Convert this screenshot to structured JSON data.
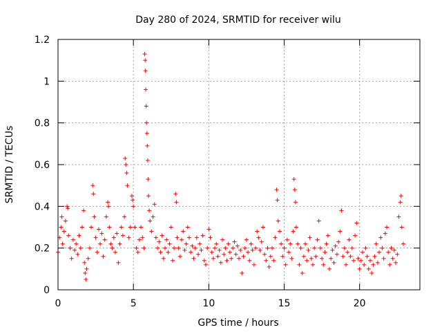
{
  "chart_data": {
    "type": "scatter",
    "title": "Day 280 of 2024, SRMTID for receiver wilu",
    "xlabel": "GPS time / hours",
    "ylabel": "SRMTID / TECUs",
    "xlim": [
      0,
      24
    ],
    "ylim": [
      0,
      1.2
    ],
    "xticks": [
      0,
      5,
      10,
      15,
      20
    ],
    "xtick_labels": [
      "0",
      "5",
      "10",
      "15",
      "20"
    ],
    "yticks": [
      0,
      0.2,
      0.4,
      0.6,
      0.8,
      1.0,
      1.2
    ],
    "ytick_labels": [
      "0",
      "0.2",
      "0.4",
      "0.6",
      "0.8",
      "1",
      "1.2"
    ],
    "grid": true,
    "marker": "+",
    "color": "#ff0000",
    "series": [
      {
        "name": "SRMTID",
        "points": [
          [
            0.0,
            0.18
          ],
          [
            0.1,
            0.25
          ],
          [
            0.2,
            0.3
          ],
          [
            0.25,
            0.35
          ],
          [
            0.3,
            0.22
          ],
          [
            0.4,
            0.28
          ],
          [
            0.5,
            0.33
          ],
          [
            0.6,
            0.4
          ],
          [
            0.65,
            0.39
          ],
          [
            0.7,
            0.26
          ],
          [
            0.8,
            0.2
          ],
          [
            0.9,
            0.15
          ],
          [
            1.0,
            0.24
          ],
          [
            1.1,
            0.19
          ],
          [
            1.2,
            0.22
          ],
          [
            1.3,
            0.17
          ],
          [
            1.4,
            0.26
          ],
          [
            1.5,
            0.2
          ],
          [
            1.6,
            0.3
          ],
          [
            1.7,
            0.38
          ],
          [
            1.75,
            0.13
          ],
          [
            1.8,
            0.08
          ],
          [
            1.85,
            0.05
          ],
          [
            1.9,
            0.1
          ],
          [
            2.0,
            0.15
          ],
          [
            2.1,
            0.2
          ],
          [
            2.2,
            0.3
          ],
          [
            2.3,
            0.5
          ],
          [
            2.35,
            0.46
          ],
          [
            2.4,
            0.35
          ],
          [
            2.5,
            0.25
          ],
          [
            2.6,
            0.18
          ],
          [
            2.7,
            0.29
          ],
          [
            2.8,
            0.22
          ],
          [
            2.9,
            0.27
          ],
          [
            3.0,
            0.16
          ],
          [
            3.1,
            0.24
          ],
          [
            3.2,
            0.35
          ],
          [
            3.3,
            0.42
          ],
          [
            3.35,
            0.4
          ],
          [
            3.4,
            0.3
          ],
          [
            3.5,
            0.22
          ],
          [
            3.6,
            0.2
          ],
          [
            3.7,
            0.25
          ],
          [
            3.8,
            0.18
          ],
          [
            3.9,
            0.27
          ],
          [
            4.0,
            0.13
          ],
          [
            4.1,
            0.22
          ],
          [
            4.2,
            0.3
          ],
          [
            4.3,
            0.26
          ],
          [
            4.4,
            0.35
          ],
          [
            4.45,
            0.63
          ],
          [
            4.5,
            0.6
          ],
          [
            4.55,
            0.56
          ],
          [
            4.6,
            0.5
          ],
          [
            4.7,
            0.25
          ],
          [
            4.8,
            0.3
          ],
          [
            4.9,
            0.45
          ],
          [
            4.95,
            0.43
          ],
          [
            5.0,
            0.4
          ],
          [
            5.1,
            0.3
          ],
          [
            5.2,
            0.2
          ],
          [
            5.3,
            0.18
          ],
          [
            5.4,
            0.24
          ],
          [
            5.5,
            0.3
          ],
          [
            5.6,
            0.25
          ],
          [
            5.7,
            0.2
          ],
          [
            5.75,
            1.13
          ],
          [
            5.78,
            1.1
          ],
          [
            5.8,
            1.05
          ],
          [
            5.82,
            0.96
          ],
          [
            5.85,
            0.88
          ],
          [
            5.87,
            0.8
          ],
          [
            5.9,
            0.75
          ],
          [
            5.92,
            0.69
          ],
          [
            5.95,
            0.62
          ],
          [
            5.97,
            0.53
          ],
          [
            6.0,
            0.45
          ],
          [
            6.05,
            0.38
          ],
          [
            6.1,
            0.33
          ],
          [
            6.2,
            0.28
          ],
          [
            6.3,
            0.35
          ],
          [
            6.4,
            0.41
          ],
          [
            6.5,
            0.25
          ],
          [
            6.6,
            0.2
          ],
          [
            6.7,
            0.23
          ],
          [
            6.8,
            0.18
          ],
          [
            6.9,
            0.26
          ],
          [
            7.0,
            0.15
          ],
          [
            7.1,
            0.2
          ],
          [
            7.2,
            0.24
          ],
          [
            7.3,
            0.18
          ],
          [
            7.4,
            0.22
          ],
          [
            7.5,
            0.3
          ],
          [
            7.6,
            0.14
          ],
          [
            7.7,
            0.2
          ],
          [
            7.8,
            0.46
          ],
          [
            7.85,
            0.42
          ],
          [
            7.9,
            0.25
          ],
          [
            8.0,
            0.2
          ],
          [
            8.1,
            0.16
          ],
          [
            8.2,
            0.24
          ],
          [
            8.3,
            0.28
          ],
          [
            8.4,
            0.19
          ],
          [
            8.5,
            0.22
          ],
          [
            8.6,
            0.3
          ],
          [
            8.7,
            0.25
          ],
          [
            8.8,
            0.18
          ],
          [
            8.9,
            0.21
          ],
          [
            9.0,
            0.15
          ],
          [
            9.1,
            0.2
          ],
          [
            9.2,
            0.25
          ],
          [
            9.3,
            0.17
          ],
          [
            9.4,
            0.22
          ],
          [
            9.5,
            0.19
          ],
          [
            9.6,
            0.26
          ],
          [
            9.7,
            0.14
          ],
          [
            9.8,
            0.12
          ],
          [
            9.9,
            0.2
          ],
          [
            10.0,
            0.29
          ],
          [
            10.1,
            0.25
          ],
          [
            10.2,
            0.18
          ],
          [
            10.3,
            0.15
          ],
          [
            10.4,
            0.2
          ],
          [
            10.5,
            0.22
          ],
          [
            10.6,
            0.16
          ],
          [
            10.7,
            0.19
          ],
          [
            10.8,
            0.13
          ],
          [
            10.9,
            0.24
          ],
          [
            11.0,
            0.17
          ],
          [
            11.1,
            0.2
          ],
          [
            11.2,
            0.14
          ],
          [
            11.3,
            0.22
          ],
          [
            11.4,
            0.18
          ],
          [
            11.5,
            0.15
          ],
          [
            11.6,
            0.2
          ],
          [
            11.7,
            0.23
          ],
          [
            11.8,
            0.17
          ],
          [
            11.9,
            0.21
          ],
          [
            12.0,
            0.15
          ],
          [
            12.1,
            0.19
          ],
          [
            12.2,
            0.08
          ],
          [
            12.3,
            0.16
          ],
          [
            12.4,
            0.2
          ],
          [
            12.5,
            0.24
          ],
          [
            12.6,
            0.18
          ],
          [
            12.7,
            0.14
          ],
          [
            12.8,
            0.22
          ],
          [
            12.9,
            0.19
          ],
          [
            13.0,
            0.12
          ],
          [
            13.1,
            0.2
          ],
          [
            13.2,
            0.28
          ],
          [
            13.3,
            0.25
          ],
          [
            13.4,
            0.19
          ],
          [
            13.5,
            0.23
          ],
          [
            13.6,
            0.3
          ],
          [
            13.7,
            0.17
          ],
          [
            13.8,
            0.14
          ],
          [
            13.9,
            0.2
          ],
          [
            14.0,
            0.11
          ],
          [
            14.1,
            0.16
          ],
          [
            14.2,
            0.2
          ],
          [
            14.3,
            0.14
          ],
          [
            14.4,
            0.25
          ],
          [
            14.5,
            0.48
          ],
          [
            14.55,
            0.43
          ],
          [
            14.6,
            0.33
          ],
          [
            14.7,
            0.28
          ],
          [
            14.8,
            0.22
          ],
          [
            14.9,
            0.16
          ],
          [
            15.0,
            0.2
          ],
          [
            15.1,
            0.12
          ],
          [
            15.2,
            0.24
          ],
          [
            15.3,
            0.18
          ],
          [
            15.4,
            0.22
          ],
          [
            15.5,
            0.15
          ],
          [
            15.6,
            0.28
          ],
          [
            15.65,
            0.53
          ],
          [
            15.7,
            0.48
          ],
          [
            15.75,
            0.42
          ],
          [
            15.8,
            0.3
          ],
          [
            15.9,
            0.22
          ],
          [
            16.0,
            0.12
          ],
          [
            16.1,
            0.2
          ],
          [
            16.2,
            0.08
          ],
          [
            16.3,
            0.16
          ],
          [
            16.4,
            0.22
          ],
          [
            16.5,
            0.14
          ],
          [
            16.6,
            0.19
          ],
          [
            16.7,
            0.25
          ],
          [
            16.8,
            0.15
          ],
          [
            16.9,
            0.12
          ],
          [
            17.0,
            0.2
          ],
          [
            17.1,
            0.16
          ],
          [
            17.2,
            0.24
          ],
          [
            17.3,
            0.33
          ],
          [
            17.4,
            0.2
          ],
          [
            17.5,
            0.15
          ],
          [
            17.6,
            0.12
          ],
          [
            17.7,
            0.18
          ],
          [
            17.8,
            0.22
          ],
          [
            17.9,
            0.26
          ],
          [
            18.0,
            0.1
          ],
          [
            18.1,
            0.15
          ],
          [
            18.2,
            0.19
          ],
          [
            18.3,
            0.13
          ],
          [
            18.4,
            0.21
          ],
          [
            18.5,
            0.17
          ],
          [
            18.6,
            0.23
          ],
          [
            18.7,
            0.28
          ],
          [
            18.8,
            0.38
          ],
          [
            18.9,
            0.16
          ],
          [
            19.0,
            0.2
          ],
          [
            19.1,
            0.12
          ],
          [
            19.2,
            0.18
          ],
          [
            19.3,
            0.24
          ],
          [
            19.4,
            0.16
          ],
          [
            19.5,
            0.2
          ],
          [
            19.6,
            0.14
          ],
          [
            19.7,
            0.26
          ],
          [
            19.8,
            0.32
          ],
          [
            19.9,
            0.15
          ],
          [
            20.0,
            0.1
          ],
          [
            20.1,
            0.14
          ],
          [
            20.2,
            0.18
          ],
          [
            20.3,
            0.12
          ],
          [
            20.4,
            0.2
          ],
          [
            20.5,
            0.16
          ],
          [
            20.6,
            0.1
          ],
          [
            20.7,
            0.14
          ],
          [
            20.8,
            0.08
          ],
          [
            20.9,
            0.12
          ],
          [
            21.0,
            0.16
          ],
          [
            21.1,
            0.22
          ],
          [
            21.2,
            0.13
          ],
          [
            21.3,
            0.18
          ],
          [
            21.4,
            0.25
          ],
          [
            21.5,
            0.2
          ],
          [
            21.6,
            0.15
          ],
          [
            21.7,
            0.27
          ],
          [
            21.8,
            0.3
          ],
          [
            21.9,
            0.18
          ],
          [
            22.0,
            0.12
          ],
          [
            22.1,
            0.2
          ],
          [
            22.2,
            0.15
          ],
          [
            22.3,
            0.19
          ],
          [
            22.4,
            0.13
          ],
          [
            22.5,
            0.17
          ],
          [
            22.6,
            0.35
          ],
          [
            22.7,
            0.42
          ],
          [
            22.75,
            0.45
          ],
          [
            22.8,
            0.3
          ],
          [
            22.9,
            0.22
          ]
        ]
      }
    ]
  }
}
